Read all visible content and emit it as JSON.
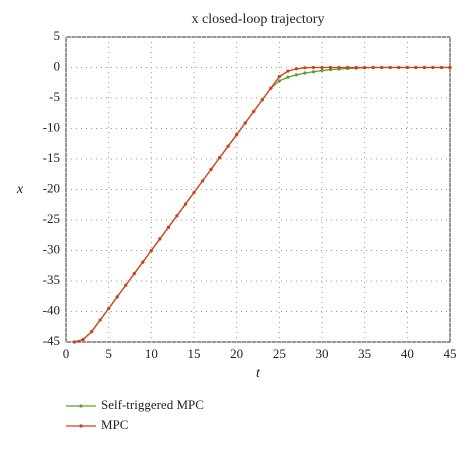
{
  "chart_data": {
    "type": "line",
    "title": "x closed-loop trajectory",
    "x_label": "t",
    "y_label": "x",
    "x": [
      1,
      2,
      3,
      4,
      5,
      6,
      7,
      8,
      9,
      10,
      11,
      12,
      13,
      14,
      15,
      16,
      17,
      18,
      19,
      20,
      21,
      22,
      23,
      24,
      25,
      26,
      27,
      28,
      29,
      30,
      31,
      32,
      33,
      34,
      35,
      36,
      37,
      38,
      39,
      40,
      41,
      42,
      43,
      44,
      45
    ],
    "series": [
      {
        "name": "Self-triggered MPC",
        "color": "#5aa02c",
        "values": [
          -45,
          -44.6,
          -43.3,
          -41.4,
          -39.5,
          -37.6,
          -35.7,
          -33.8,
          -31.9,
          -30.0,
          -28.1,
          -26.2,
          -24.3,
          -22.4,
          -20.5,
          -18.6,
          -16.7,
          -14.8,
          -12.9,
          -11.0,
          -9.1,
          -7.2,
          -5.3,
          -3.4,
          -2.2,
          -1.6,
          -1.2,
          -0.9,
          -0.7,
          -0.5,
          -0.35,
          -0.25,
          -0.15,
          -0.1,
          -0.05,
          0,
          0,
          0,
          0,
          0,
          0,
          0,
          0,
          0,
          0
        ]
      },
      {
        "name": "MPC",
        "color": "#d2401e",
        "values": [
          -45,
          -44.6,
          -43.3,
          -41.4,
          -39.5,
          -37.6,
          -35.7,
          -33.8,
          -31.9,
          -30.0,
          -28.1,
          -26.2,
          -24.3,
          -22.4,
          -20.5,
          -18.6,
          -16.7,
          -14.8,
          -12.9,
          -11.0,
          -9.1,
          -7.2,
          -5.3,
          -3.4,
          -1.5,
          -0.6,
          -0.2,
          -0.05,
          0,
          0,
          0,
          0,
          0,
          0,
          0,
          0,
          0,
          0,
          0,
          0,
          0,
          0,
          0,
          0,
          0
        ]
      }
    ],
    "xlim": [
      0,
      45
    ],
    "xticks": [
      0,
      5,
      10,
      15,
      20,
      25,
      30,
      35,
      40,
      45
    ],
    "ylim": [
      -45,
      5
    ],
    "yticks": [
      5,
      0,
      -5,
      -10,
      -15,
      -20,
      -25,
      -30,
      -35,
      -40,
      -45
    ],
    "grid": true
  }
}
